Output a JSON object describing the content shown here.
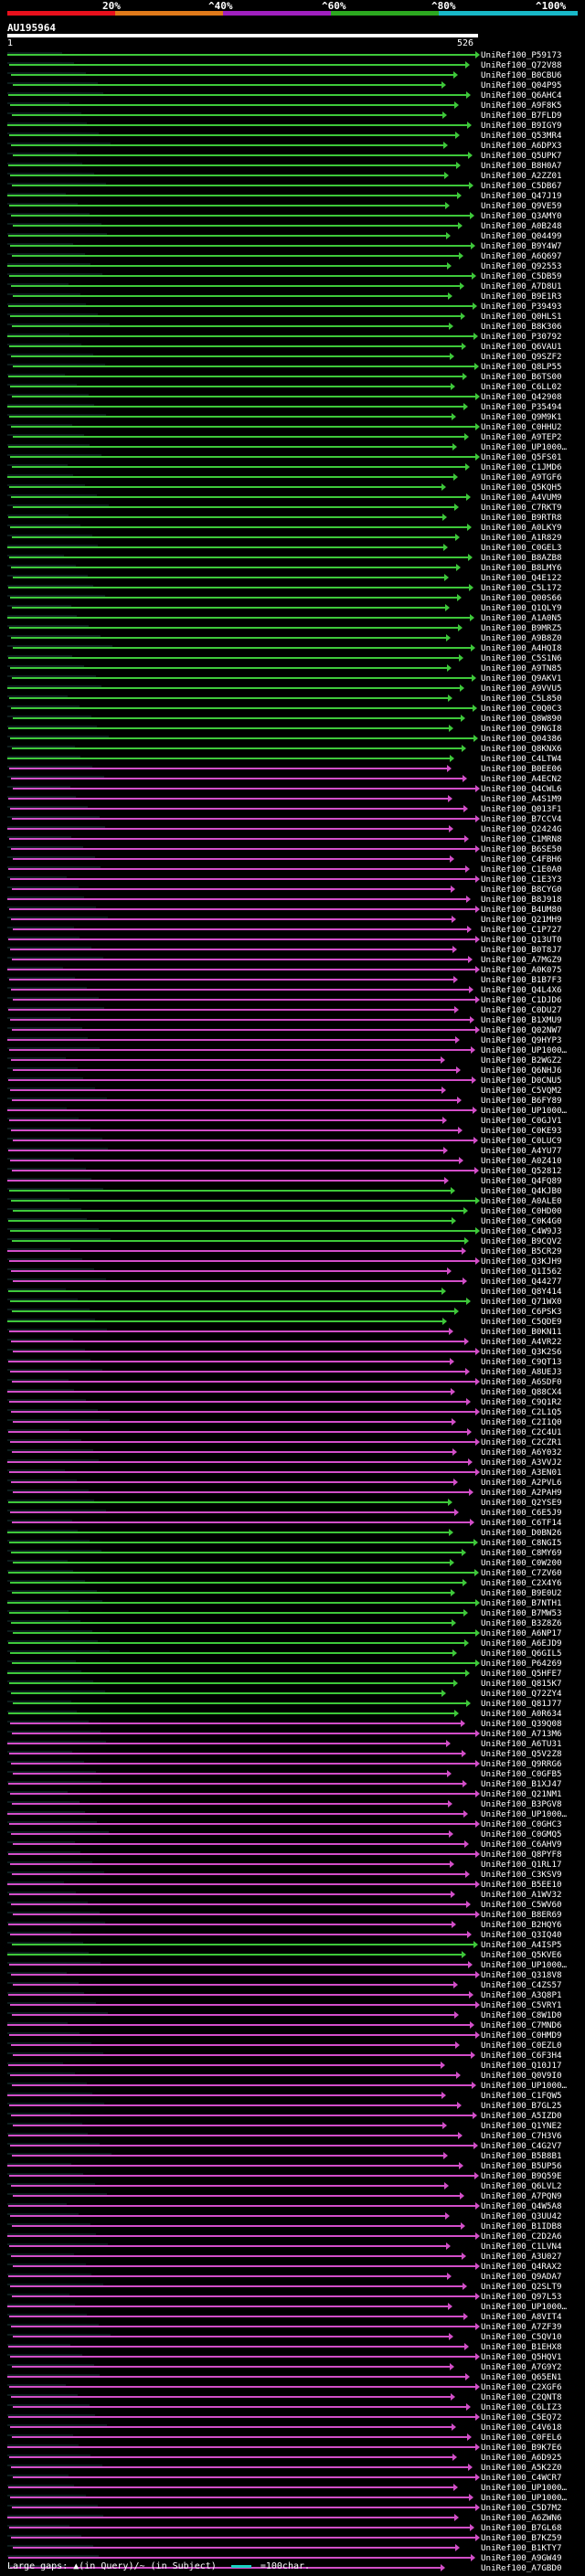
{
  "scale": {
    "labels": [
      "20%",
      "^40%",
      "^60%",
      "^80%",
      "^100%"
    ],
    "colors": [
      "#e8101c",
      "#e07a1a",
      "#a020c0",
      "#2ca820",
      "#18b8c8"
    ]
  },
  "query": {
    "name": "AU195964",
    "start": "1",
    "end": "526"
  },
  "colors": {
    "green": "#3ec83a",
    "magenta": "#d24ec8",
    "darkline": "#1a3a3a"
  },
  "hits": [
    {
      "label": "UniRef100_P59173",
      "color": "green"
    },
    {
      "label": "UniRef100_Q72V88",
      "color": "green"
    },
    {
      "label": "UniRef100_B0CBU6",
      "color": "green"
    },
    {
      "label": "UniRef100_Q04P95",
      "color": "green"
    },
    {
      "label": "UniRef100_Q6AHC4",
      "color": "green"
    },
    {
      "label": "UniRef100_A9F8K5",
      "color": "green"
    },
    {
      "label": "UniRef100_B7FLD9",
      "color": "green"
    },
    {
      "label": "UniRef100_B9IGY9",
      "color": "green"
    },
    {
      "label": "UniRef100_Q53MR4",
      "color": "green"
    },
    {
      "label": "UniRef100_A6DPX3",
      "color": "green"
    },
    {
      "label": "UniRef100_Q5UPK7",
      "color": "green"
    },
    {
      "label": "UniRef100_B8H0A7",
      "color": "green"
    },
    {
      "label": "UniRef100_A2ZZ01",
      "color": "green"
    },
    {
      "label": "UniRef100_C5DB67",
      "color": "green"
    },
    {
      "label": "UniRef100_Q47J19",
      "color": "green"
    },
    {
      "label": "UniRef100_Q9VE59",
      "color": "green"
    },
    {
      "label": "UniRef100_Q3AMY0",
      "color": "green"
    },
    {
      "label": "UniRef100_A0B248",
      "color": "green"
    },
    {
      "label": "UniRef100_Q04499",
      "color": "green"
    },
    {
      "label": "UniRef100_B9Y4W7",
      "color": "green"
    },
    {
      "label": "UniRef100_A6Q697",
      "color": "green"
    },
    {
      "label": "UniRef100_Q92553",
      "color": "green"
    },
    {
      "label": "UniRef100_C5DB59",
      "color": "green"
    },
    {
      "label": "UniRef100_A7D8U1",
      "color": "green"
    },
    {
      "label": "UniRef100_B9E1R3",
      "color": "green"
    },
    {
      "label": "UniRef100_P39493",
      "color": "green"
    },
    {
      "label": "UniRef100_Q0HLS1",
      "color": "green"
    },
    {
      "label": "UniRef100_B8K306",
      "color": "green"
    },
    {
      "label": "UniRef100_P30792",
      "color": "green"
    },
    {
      "label": "UniRef100_Q6VAU1",
      "color": "green"
    },
    {
      "label": "UniRef100_Q9SZF2",
      "color": "green"
    },
    {
      "label": "UniRef100_Q8LP55",
      "color": "green"
    },
    {
      "label": "UniRef100_B6TS00",
      "color": "green"
    },
    {
      "label": "UniRef100_C6LL02",
      "color": "green"
    },
    {
      "label": "UniRef100_Q42908",
      "color": "green"
    },
    {
      "label": "UniRef100_P35494",
      "color": "green"
    },
    {
      "label": "UniRef100_Q9M9K1",
      "color": "green"
    },
    {
      "label": "UniRef100_C0HHU2",
      "color": "green"
    },
    {
      "label": "UniRef100_A9TEP2",
      "color": "green"
    },
    {
      "label": "UniRef100_UP1000…",
      "color": "green"
    },
    {
      "label": "UniRef100_Q5FS01",
      "color": "green"
    },
    {
      "label": "UniRef100_C1JMD6",
      "color": "green"
    },
    {
      "label": "UniRef100_A9TGF6",
      "color": "green"
    },
    {
      "label": "UniRef100_Q5KQH5",
      "color": "green"
    },
    {
      "label": "UniRef100_A4VUM9",
      "color": "green"
    },
    {
      "label": "UniRef100_C7RKT9",
      "color": "green"
    },
    {
      "label": "UniRef100_B9RTR8",
      "color": "green"
    },
    {
      "label": "UniRef100_A0LKY9",
      "color": "green"
    },
    {
      "label": "UniRef100_A1R829",
      "color": "green"
    },
    {
      "label": "UniRef100_C0GEL3",
      "color": "green"
    },
    {
      "label": "UniRef100_B8AZB8",
      "color": "green"
    },
    {
      "label": "UniRef100_B8LMY6",
      "color": "green"
    },
    {
      "label": "UniRef100_Q4E122",
      "color": "green"
    },
    {
      "label": "UniRef100_C5L172",
      "color": "green"
    },
    {
      "label": "UniRef100_Q00S66",
      "color": "green"
    },
    {
      "label": "UniRef100_Q1QLY9",
      "color": "green"
    },
    {
      "label": "UniRef100_A1A0N5",
      "color": "green"
    },
    {
      "label": "UniRef100_B9MRZ5",
      "color": "green"
    },
    {
      "label": "UniRef100_A9B8Z0",
      "color": "green"
    },
    {
      "label": "UniRef100_A4HQI8",
      "color": "green"
    },
    {
      "label": "UniRef100_C5S1N6",
      "color": "green"
    },
    {
      "label": "UniRef100_A9TN85",
      "color": "green"
    },
    {
      "label": "UniRef100_Q9AKV1",
      "color": "green"
    },
    {
      "label": "UniRef100_A9VVU5",
      "color": "green"
    },
    {
      "label": "UniRef100_C5L850",
      "color": "green"
    },
    {
      "label": "UniRef100_C0Q0C3",
      "color": "green"
    },
    {
      "label": "UniRef100_Q8W890",
      "color": "green"
    },
    {
      "label": "UniRef100_Q9NGI8",
      "color": "green"
    },
    {
      "label": "UniRef100_Q04386",
      "color": "green"
    },
    {
      "label": "UniRef100_Q8KNX6",
      "color": "green"
    },
    {
      "label": "UniRef100_C4LTW4",
      "color": "green"
    },
    {
      "label": "UniRef100_B0EE06",
      "color": "magenta"
    },
    {
      "label": "UniRef100_A4ECN2",
      "color": "magenta"
    },
    {
      "label": "UniRef100_Q4CWL6",
      "color": "magenta"
    },
    {
      "label": "UniRef100_A4S1M9",
      "color": "magenta"
    },
    {
      "label": "UniRef100_Q013F1",
      "color": "magenta"
    },
    {
      "label": "UniRef100_B7CCV4",
      "color": "magenta"
    },
    {
      "label": "UniRef100_Q2424G",
      "color": "magenta"
    },
    {
      "label": "UniRef100_C1MRN8",
      "color": "magenta"
    },
    {
      "label": "UniRef100_B6SE50",
      "color": "magenta"
    },
    {
      "label": "UniRef100_C4FBH6",
      "color": "magenta"
    },
    {
      "label": "UniRef100_C1E0A0",
      "color": "magenta"
    },
    {
      "label": "UniRef100_C1E3Y3",
      "color": "magenta"
    },
    {
      "label": "UniRef100_B8CYG0",
      "color": "magenta"
    },
    {
      "label": "UniRef100_B8J918",
      "color": "magenta"
    },
    {
      "label": "UniRef100_B4UM80",
      "color": "magenta"
    },
    {
      "label": "UniRef100_Q21MH9",
      "color": "magenta"
    },
    {
      "label": "UniRef100_C1P727",
      "color": "magenta"
    },
    {
      "label": "UniRef100_Q13UT0",
      "color": "magenta"
    },
    {
      "label": "UniRef100_B0T8J7",
      "color": "magenta"
    },
    {
      "label": "UniRef100_A7MGZ9",
      "color": "magenta"
    },
    {
      "label": "UniRef100_A0K075",
      "color": "magenta"
    },
    {
      "label": "UniRef100_B1B7F3",
      "color": "magenta"
    },
    {
      "label": "UniRef100_Q4L4X6",
      "color": "magenta"
    },
    {
      "label": "UniRef100_C1DJD6",
      "color": "magenta"
    },
    {
      "label": "UniRef100_C0DU27",
      "color": "magenta"
    },
    {
      "label": "UniRef100_B1XMU9",
      "color": "magenta"
    },
    {
      "label": "UniRef100_Q02NW7",
      "color": "magenta"
    },
    {
      "label": "UniRef100_Q9HYP3",
      "color": "magenta"
    },
    {
      "label": "UniRef100_UP1000…",
      "color": "magenta"
    },
    {
      "label": "UniRef100_B2WGZ2",
      "color": "magenta"
    },
    {
      "label": "UniRef100_Q6NHJ6",
      "color": "magenta"
    },
    {
      "label": "UniRef100_D0CNU5",
      "color": "magenta"
    },
    {
      "label": "UniRef100_C5VQM2",
      "color": "magenta"
    },
    {
      "label": "UniRef100_B6FY89",
      "color": "magenta"
    },
    {
      "label": "UniRef100_UP1000…",
      "color": "magenta"
    },
    {
      "label": "UniRef100_C0GJV1",
      "color": "magenta"
    },
    {
      "label": "UniRef100_C0KE93",
      "color": "magenta"
    },
    {
      "label": "UniRef100_C0LUC9",
      "color": "magenta"
    },
    {
      "label": "UniRef100_A4YU77",
      "color": "magenta"
    },
    {
      "label": "UniRef100_A0Z410",
      "color": "magenta"
    },
    {
      "label": "UniRef100_Q52812",
      "color": "magenta"
    },
    {
      "label": "UniRef100_Q4FQ89",
      "color": "magenta"
    },
    {
      "label": "UniRef100_Q4KJB0",
      "color": "green"
    },
    {
      "label": "UniRef100_A0ALE0",
      "color": "green"
    },
    {
      "label": "UniRef100_C0HD00",
      "color": "green"
    },
    {
      "label": "UniRef100_C0K4G0",
      "color": "green"
    },
    {
      "label": "UniRef100_C4W9J3",
      "color": "green"
    },
    {
      "label": "UniRef100_B9CQV2",
      "color": "green"
    },
    {
      "label": "UniRef100_B5CR29",
      "color": "magenta"
    },
    {
      "label": "UniRef100_Q3KJH9",
      "color": "magenta"
    },
    {
      "label": "UniRef100_Q1I562",
      "color": "magenta"
    },
    {
      "label": "UniRef100_Q44277",
      "color": "magenta"
    },
    {
      "label": "UniRef100_Q8Y414",
      "color": "green"
    },
    {
      "label": "UniRef100_Q71WX0",
      "color": "green"
    },
    {
      "label": "UniRef100_C6PSK3",
      "color": "green"
    },
    {
      "label": "UniRef100_C5QDE9",
      "color": "green"
    },
    {
      "label": "UniRef100_B0KN11",
      "color": "magenta"
    },
    {
      "label": "UniRef100_A4VR22",
      "color": "magenta"
    },
    {
      "label": "UniRef100_Q3K2S6",
      "color": "magenta"
    },
    {
      "label": "UniRef100_C9QT13",
      "color": "magenta"
    },
    {
      "label": "UniRef100_A8UEJ3",
      "color": "magenta"
    },
    {
      "label": "UniRef100_A6SDF0",
      "color": "magenta"
    },
    {
      "label": "UniRef100_Q88CX4",
      "color": "magenta"
    },
    {
      "label": "UniRef100_C9Q1R2",
      "color": "magenta"
    },
    {
      "label": "UniRef100_C2L1Q5",
      "color": "magenta"
    },
    {
      "label": "UniRef100_C2I1Q0",
      "color": "magenta"
    },
    {
      "label": "UniRef100_C2C4U1",
      "color": "magenta"
    },
    {
      "label": "UniRef100_C2CZR1",
      "color": "magenta"
    },
    {
      "label": "UniRef100_A6Y032",
      "color": "magenta"
    },
    {
      "label": "UniRef100_A3VVJ2",
      "color": "magenta"
    },
    {
      "label": "UniRef100_A3EN01",
      "color": "magenta"
    },
    {
      "label": "UniRef100_A2PVL6",
      "color": "magenta"
    },
    {
      "label": "UniRef100_A2PAH9",
      "color": "magenta"
    },
    {
      "label": "UniRef100_Q2YSE9",
      "color": "green"
    },
    {
      "label": "UniRef100_C6E5J9",
      "color": "magenta"
    },
    {
      "label": "UniRef100_C6TF14",
      "color": "magenta"
    },
    {
      "label": "UniRef100_D0BN26",
      "color": "green"
    },
    {
      "label": "UniRef100_C8NGI5",
      "color": "green"
    },
    {
      "label": "UniRef100_C8MY69",
      "color": "green"
    },
    {
      "label": "UniRef100_C0W200",
      "color": "green"
    },
    {
      "label": "UniRef100_C7ZV60",
      "color": "green"
    },
    {
      "label": "UniRef100_C2X4Y6",
      "color": "green"
    },
    {
      "label": "UniRef100_B9E0U2",
      "color": "green"
    },
    {
      "label": "UniRef100_B7NTH1",
      "color": "green"
    },
    {
      "label": "UniRef100_B7MW53",
      "color": "green"
    },
    {
      "label": "UniRef100_B3Z8Z6",
      "color": "green"
    },
    {
      "label": "UniRef100_A6NP17",
      "color": "green"
    },
    {
      "label": "UniRef100_A6EJD9",
      "color": "green"
    },
    {
      "label": "UniRef100_Q6GIL5",
      "color": "green"
    },
    {
      "label": "UniRef100_P64269",
      "color": "green"
    },
    {
      "label": "UniRef100_Q5HFE7",
      "color": "green"
    },
    {
      "label": "UniRef100_Q815K7",
      "color": "green"
    },
    {
      "label": "UniRef100_Q72ZY4",
      "color": "green"
    },
    {
      "label": "UniRef100_Q81J77",
      "color": "green"
    },
    {
      "label": "UniRef100_A0R634",
      "color": "green"
    },
    {
      "label": "UniRef100_Q39Q08",
      "color": "magenta"
    },
    {
      "label": "UniRef100_A713M6",
      "color": "magenta"
    },
    {
      "label": "UniRef100_A6TU31",
      "color": "magenta"
    },
    {
      "label": "UniRef100_Q5V2Z8",
      "color": "magenta"
    },
    {
      "label": "UniRef100_Q9RRG6",
      "color": "magenta"
    },
    {
      "label": "UniRef100_C0GFB5",
      "color": "magenta"
    },
    {
      "label": "UniRef100_B1XJ47",
      "color": "magenta"
    },
    {
      "label": "UniRef100_Q21NM1",
      "color": "magenta"
    },
    {
      "label": "UniRef100_B3PGV8",
      "color": "magenta"
    },
    {
      "label": "UniRef100_UP1000…",
      "color": "magenta"
    },
    {
      "label": "UniRef100_C0GHC3",
      "color": "magenta"
    },
    {
      "label": "UniRef100_C0GMQ5",
      "color": "magenta"
    },
    {
      "label": "UniRef100_C6AHV9",
      "color": "magenta"
    },
    {
      "label": "UniRef100_Q8PYF8",
      "color": "magenta"
    },
    {
      "label": "UniRef100_Q1RL17",
      "color": "magenta"
    },
    {
      "label": "UniRef100_C3KSV9",
      "color": "magenta"
    },
    {
      "label": "UniRef100_B5EE10",
      "color": "magenta"
    },
    {
      "label": "UniRef100_A1WV32",
      "color": "magenta"
    },
    {
      "label": "UniRef100_C5WV60",
      "color": "magenta"
    },
    {
      "label": "UniRef100_B8ER69",
      "color": "magenta"
    },
    {
      "label": "UniRef100_B2HQY6",
      "color": "magenta"
    },
    {
      "label": "UniRef100_Q3IQ40",
      "color": "magenta"
    },
    {
      "label": "UniRef100_A4ISP5",
      "color": "green"
    },
    {
      "label": "UniRef100_Q5KVE6",
      "color": "green"
    },
    {
      "label": "UniRef100_UP1000…",
      "color": "magenta"
    },
    {
      "label": "UniRef100_Q318V8",
      "color": "magenta"
    },
    {
      "label": "UniRef100_C4ZS57",
      "color": "magenta"
    },
    {
      "label": "UniRef100_A3Q8P1",
      "color": "magenta"
    },
    {
      "label": "UniRef100_C5VRY1",
      "color": "magenta"
    },
    {
      "label": "UniRef100_C8W1D0",
      "color": "magenta"
    },
    {
      "label": "UniRef100_C7MND6",
      "color": "magenta"
    },
    {
      "label": "UniRef100_C0HMD9",
      "color": "magenta"
    },
    {
      "label": "UniRef100_C0EZL0",
      "color": "magenta"
    },
    {
      "label": "UniRef100_C6F3H4",
      "color": "magenta"
    },
    {
      "label": "UniRef100_Q10J17",
      "color": "magenta"
    },
    {
      "label": "UniRef100_Q0V9I0",
      "color": "magenta"
    },
    {
      "label": "UniRef100_UP1000…",
      "color": "magenta"
    },
    {
      "label": "UniRef100_C1FQW5",
      "color": "magenta"
    },
    {
      "label": "UniRef100_B7GL25",
      "color": "magenta"
    },
    {
      "label": "UniRef100_A5IZD0",
      "color": "magenta"
    },
    {
      "label": "UniRef100_Q1YNE2",
      "color": "magenta"
    },
    {
      "label": "UniRef100_C7H3V6",
      "color": "magenta"
    },
    {
      "label": "UniRef100_C4G2V7",
      "color": "magenta"
    },
    {
      "label": "UniRef100_B5B8B1",
      "color": "magenta"
    },
    {
      "label": "UniRef100_B5UP56",
      "color": "magenta"
    },
    {
      "label": "UniRef100_B9Q59E",
      "color": "magenta"
    },
    {
      "label": "UniRef100_Q6LVL2",
      "color": "magenta"
    },
    {
      "label": "UniRef100_A7PQN9",
      "color": "magenta"
    },
    {
      "label": "UniRef100_Q4W5A8",
      "color": "magenta"
    },
    {
      "label": "UniRef100_Q3UU42",
      "color": "magenta"
    },
    {
      "label": "UniRef100_B1IDB8",
      "color": "magenta"
    },
    {
      "label": "UniRef100_C2D2A6",
      "color": "magenta"
    },
    {
      "label": "UniRef100_C1LVN4",
      "color": "magenta"
    },
    {
      "label": "UniRef100_A3U027",
      "color": "magenta"
    },
    {
      "label": "UniRef100_Q4RAX2",
      "color": "magenta"
    },
    {
      "label": "UniRef100_Q9ADA7",
      "color": "magenta"
    },
    {
      "label": "UniRef100_Q2SLT9",
      "color": "magenta"
    },
    {
      "label": "UniRef100_Q97L53",
      "color": "magenta"
    },
    {
      "label": "UniRef100_UP1000…",
      "color": "magenta"
    },
    {
      "label": "UniRef100_A8VIT4",
      "color": "magenta"
    },
    {
      "label": "UniRef100_A7ZF39",
      "color": "magenta"
    },
    {
      "label": "UniRef100_C5QV10",
      "color": "magenta"
    },
    {
      "label": "UniRef100_B1EHX8",
      "color": "magenta"
    },
    {
      "label": "UniRef100_Q5HQV1",
      "color": "magenta"
    },
    {
      "label": "UniRef100_A7G9Y2",
      "color": "magenta"
    },
    {
      "label": "UniRef100_Q65EN1",
      "color": "magenta"
    },
    {
      "label": "UniRef100_C2XGF6",
      "color": "magenta"
    },
    {
      "label": "UniRef100_C2QNT8",
      "color": "magenta"
    },
    {
      "label": "UniRef100_C6LIZ3",
      "color": "magenta"
    },
    {
      "label": "UniRef100_C5EQ72",
      "color": "magenta"
    },
    {
      "label": "UniRef100_C4V618",
      "color": "magenta"
    },
    {
      "label": "UniRef100_C0FEL6",
      "color": "magenta"
    },
    {
      "label": "UniRef100_B9K7E6",
      "color": "magenta"
    },
    {
      "label": "UniRef100_A6D925",
      "color": "magenta"
    },
    {
      "label": "UniRef100_A5K2Z0",
      "color": "magenta"
    },
    {
      "label": "UniRef100_C4WCR7",
      "color": "magenta"
    },
    {
      "label": "UniRef100_UP1000…",
      "color": "magenta"
    },
    {
      "label": "UniRef100_UP1000…",
      "color": "magenta"
    },
    {
      "label": "UniRef100_C5D7M2",
      "color": "magenta"
    },
    {
      "label": "UniRef100_A6ZWN6",
      "color": "magenta"
    },
    {
      "label": "UniRef100_B7GL68",
      "color": "magenta"
    },
    {
      "label": "UniRef100_B7KZ59",
      "color": "magenta"
    },
    {
      "label": "UniRef100_B1KTY7",
      "color": "magenta"
    },
    {
      "label": "UniRef100_A9GW49",
      "color": "magenta"
    },
    {
      "label": "UniRef100_A7GBD0",
      "color": "magenta"
    }
  ],
  "footer": {
    "gaps_text": "Large gaps: ▲(in Query)/~ (in Subject)",
    "scale_text": "=100char."
  }
}
